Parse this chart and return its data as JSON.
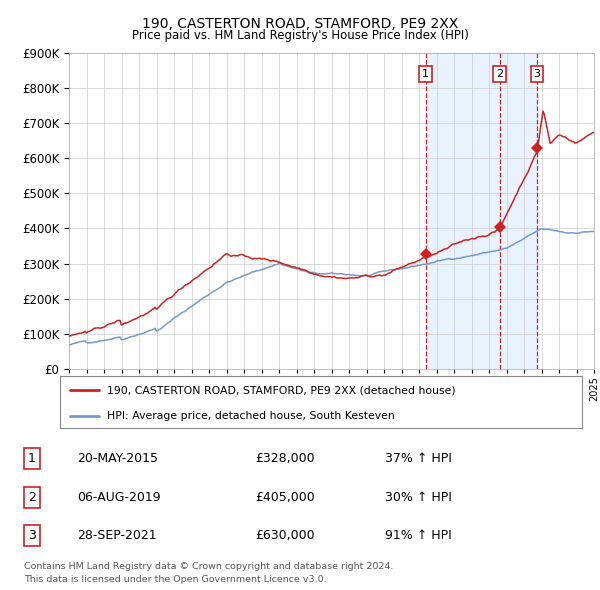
{
  "title1": "190, CASTERTON ROAD, STAMFORD, PE9 2XX",
  "title2": "Price paid vs. HM Land Registry's House Price Index (HPI)",
  "legend_line1": "190, CASTERTON ROAD, STAMFORD, PE9 2XX (detached house)",
  "legend_line2": "HPI: Average price, detached house, South Kesteven",
  "transactions": [
    {
      "num": 1,
      "date": "20-MAY-2015",
      "price": 328000,
      "pct": "37%",
      "dir": "↑",
      "ref": "HPI",
      "year": 2015.38
    },
    {
      "num": 2,
      "date": "06-AUG-2019",
      "price": 405000,
      "pct": "30%",
      "dir": "↑",
      "ref": "HPI",
      "year": 2019.6
    },
    {
      "num": 3,
      "date": "28-SEP-2021",
      "price": 630000,
      "pct": "91%",
      "dir": "↑",
      "ref": "HPI",
      "year": 2021.75
    }
  ],
  "footnote1": "Contains HM Land Registry data © Crown copyright and database right 2024.",
  "footnote2": "This data is licensed under the Open Government Licence v3.0.",
  "ylim": [
    0,
    900000
  ],
  "yticks": [
    0,
    100000,
    200000,
    300000,
    400000,
    500000,
    600000,
    700000,
    800000,
    900000
  ],
  "hpi_color": "#7799cc",
  "price_color": "#cc2222",
  "chart_bg": "#ffffff",
  "grid_color": "#cccccc",
  "shade_color": "#ddeeff",
  "xlim_start": 1995,
  "xlim_end": 2025
}
